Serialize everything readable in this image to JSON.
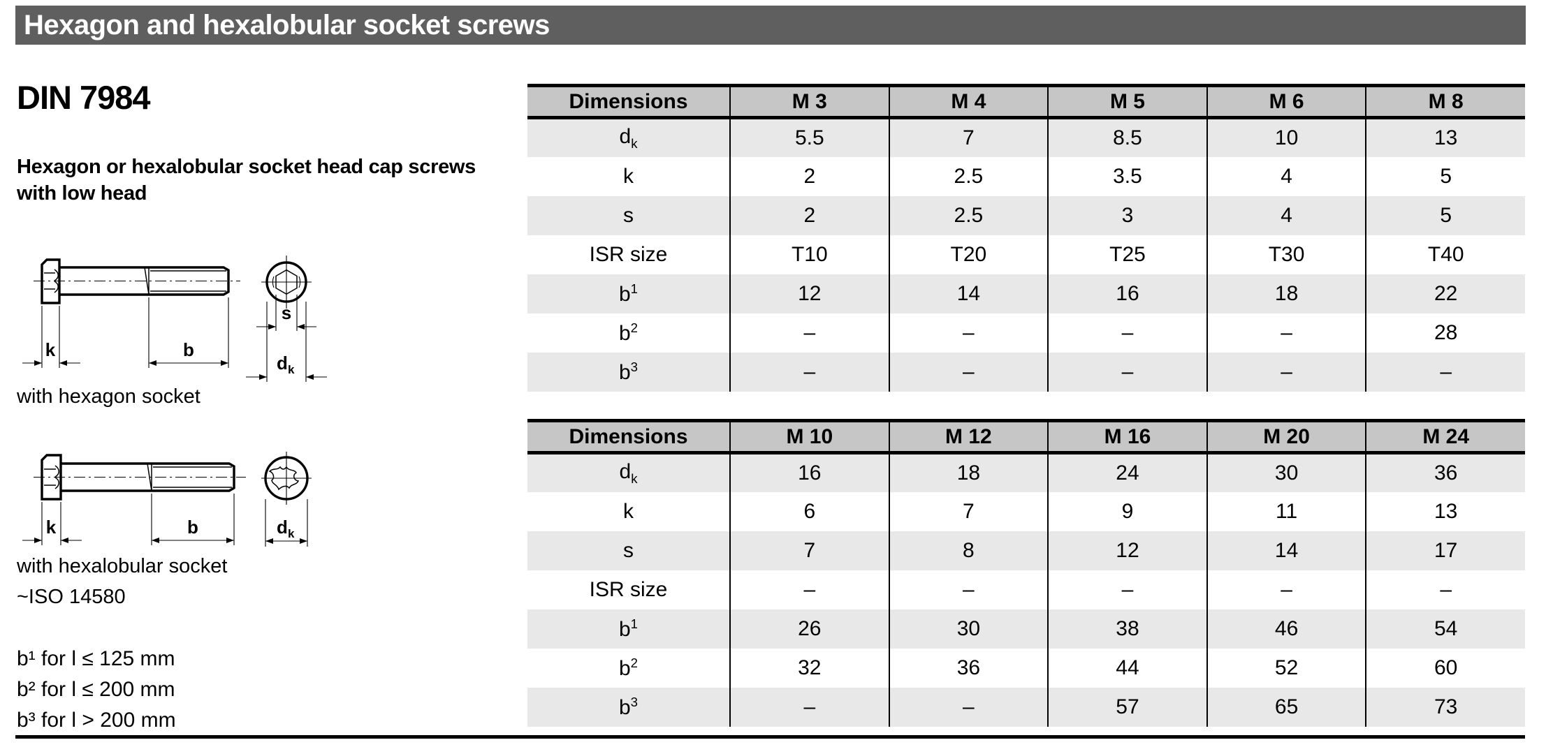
{
  "page": {
    "title": "Hexagon and hexalobular socket screws",
    "standard": "DIN 7984",
    "description": "Hexagon or hexalobular socket head cap screws with low head",
    "notes": [
      "b¹ for l ≤ 125 mm",
      "b² for l ≤ 200 mm",
      "b³ for l > 200 mm"
    ]
  },
  "diagrams": {
    "hexagon": {
      "caption": "with hexagon socket",
      "labels": {
        "k": "k",
        "b": "b",
        "s": "s",
        "dk_base": "d",
        "dk_sub": "k"
      }
    },
    "hexalobular": {
      "caption": "with hexalobular socket",
      "subcaption": "~ISO 14580",
      "labels": {
        "k": "k",
        "b": "b",
        "dk_base": "d",
        "dk_sub": "k"
      }
    }
  },
  "tables": [
    {
      "header": [
        "Dimensions",
        "M 3",
        "M 4",
        "M 5",
        "M 6",
        "M 8"
      ],
      "rows": [
        {
          "label": {
            "base": "d",
            "sub": "k"
          },
          "values": [
            "5.5",
            "7",
            "8.5",
            "10",
            "13"
          ]
        },
        {
          "label": {
            "base": "k"
          },
          "values": [
            "2",
            "2.5",
            "3.5",
            "4",
            "5"
          ]
        },
        {
          "label": {
            "base": "s"
          },
          "values": [
            "2",
            "2.5",
            "3",
            "4",
            "5"
          ]
        },
        {
          "label": {
            "base": "ISR size"
          },
          "values": [
            "T10",
            "T20",
            "T25",
            "T30",
            "T40"
          ]
        },
        {
          "label": {
            "base": "b",
            "sup": "1"
          },
          "values": [
            "12",
            "14",
            "16",
            "18",
            "22"
          ]
        },
        {
          "label": {
            "base": "b",
            "sup": "2"
          },
          "values": [
            "–",
            "–",
            "–",
            "–",
            "28"
          ]
        },
        {
          "label": {
            "base": "b",
            "sup": "3"
          },
          "values": [
            "–",
            "–",
            "–",
            "–",
            "–"
          ]
        }
      ]
    },
    {
      "header": [
        "Dimensions",
        "M 10",
        "M 12",
        "M 16",
        "M 20",
        "M 24"
      ],
      "rows": [
        {
          "label": {
            "base": "d",
            "sub": "k"
          },
          "values": [
            "16",
            "18",
            "24",
            "30",
            "36"
          ]
        },
        {
          "label": {
            "base": "k"
          },
          "values": [
            "6",
            "7",
            "9",
            "11",
            "13"
          ]
        },
        {
          "label": {
            "base": "s"
          },
          "values": [
            "7",
            "8",
            "12",
            "14",
            "17"
          ]
        },
        {
          "label": {
            "base": "ISR size"
          },
          "values": [
            "–",
            "–",
            "–",
            "–",
            "–"
          ]
        },
        {
          "label": {
            "base": "b",
            "sup": "1"
          },
          "values": [
            "26",
            "30",
            "38",
            "46",
            "54"
          ]
        },
        {
          "label": {
            "base": "b",
            "sup": "2"
          },
          "values": [
            "32",
            "36",
            "44",
            "52",
            "60"
          ]
        },
        {
          "label": {
            "base": "b",
            "sup": "3"
          },
          "values": [
            "–",
            "–",
            "57",
            "65",
            "73"
          ]
        }
      ]
    }
  ],
  "colors": {
    "title_bar_bg": "#5f5f5f",
    "title_text": "#ffffff",
    "table_header_bg": "#c6c6c6",
    "row_stripe_bg": "#e8e8e8",
    "line": "#000000"
  }
}
